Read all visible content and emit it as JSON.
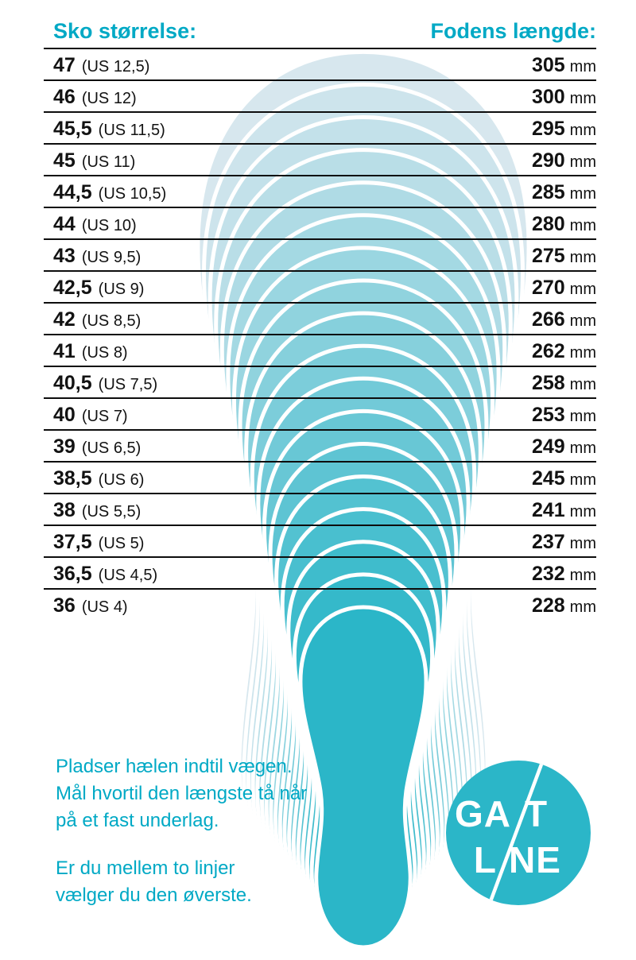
{
  "header": {
    "left": "Sko størrelse:",
    "right": "Fodens længde:"
  },
  "table": {
    "unit_label": "mm",
    "rows": [
      {
        "eu": "47",
        "us": "(US 12,5)",
        "mm": "305"
      },
      {
        "eu": "46",
        "us": "(US 12)",
        "mm": "300"
      },
      {
        "eu": "45,5",
        "us": "(US 11,5)",
        "mm": "295"
      },
      {
        "eu": "45",
        "us": "(US 11)",
        "mm": "290"
      },
      {
        "eu": "44,5",
        "us": "(US 10,5)",
        "mm": "285"
      },
      {
        "eu": "44",
        "us": "(US 10)",
        "mm": "280"
      },
      {
        "eu": "43",
        "us": "(US 9,5)",
        "mm": "275"
      },
      {
        "eu": "42,5",
        "us": "(US 9)",
        "mm": "270"
      },
      {
        "eu": "42",
        "us": "(US 8,5)",
        "mm": "266"
      },
      {
        "eu": "41",
        "us": "(US 8)",
        "mm": "262"
      },
      {
        "eu": "40,5",
        "us": "(US 7,5)",
        "mm": "258"
      },
      {
        "eu": "40",
        "us": "(US 7)",
        "mm": "253"
      },
      {
        "eu": "39",
        "us": "(US 6,5)",
        "mm": "249"
      },
      {
        "eu": "38,5",
        "us": "(US 6)",
        "mm": "245"
      },
      {
        "eu": "38",
        "us": "(US 5,5)",
        "mm": "241"
      },
      {
        "eu": "37,5",
        "us": "(US 5)",
        "mm": "237"
      },
      {
        "eu": "36,5",
        "us": "(US 4,5)",
        "mm": "232"
      },
      {
        "eu": "36",
        "us": "(US 4)",
        "mm": "228"
      }
    ]
  },
  "notes": {
    "p1": [
      "Pladser hælen indtil vægen.",
      "Mål hvortil den længste tå når",
      "på et fast underlag."
    ],
    "p2": [
      "Er du mellem to linjer",
      "vælger du den øverste."
    ]
  },
  "logo": {
    "word1_left": "GA",
    "word1_right": "T",
    "word2_left": "L",
    "word2_right": "NE"
  },
  "colors": {
    "accent": "#00a9c5",
    "foot_solid": "#2bb6c8",
    "foot_light": "#d7e7ee"
  },
  "chart_data": {
    "type": "table",
    "title": "Shoe size to foot length conversion chart",
    "columns": [
      "Sko størrelse:",
      "Fodens længde:"
    ],
    "rows": [
      [
        "47 (US 12,5)",
        "305 mm"
      ],
      [
        "46 (US 12)",
        "300 mm"
      ],
      [
        "45,5 (US 11,5)",
        "295 mm"
      ],
      [
        "45 (US 11)",
        "290 mm"
      ],
      [
        "44,5 (US 10,5)",
        "285 mm"
      ],
      [
        "44 (US 10)",
        "280 mm"
      ],
      [
        "43 (US 9,5)",
        "275 mm"
      ],
      [
        "42,5 (US 9)",
        "270 mm"
      ],
      [
        "42 (US 8,5)",
        "266 mm"
      ],
      [
        "41 (US 8)",
        "262 mm"
      ],
      [
        "40,5 (US 7,5)",
        "258 mm"
      ],
      [
        "40 (US 7)",
        "253 mm"
      ],
      [
        "39 (US 6,5)",
        "249 mm"
      ],
      [
        "38,5 (US 6)",
        "245 mm"
      ],
      [
        "38 (US 5,5)",
        "241 mm"
      ],
      [
        "37,5 (US 5)",
        "237 mm"
      ],
      [
        "36,5 (US 4,5)",
        "232 mm"
      ],
      [
        "36 (US 4)",
        "228 mm"
      ]
    ]
  }
}
